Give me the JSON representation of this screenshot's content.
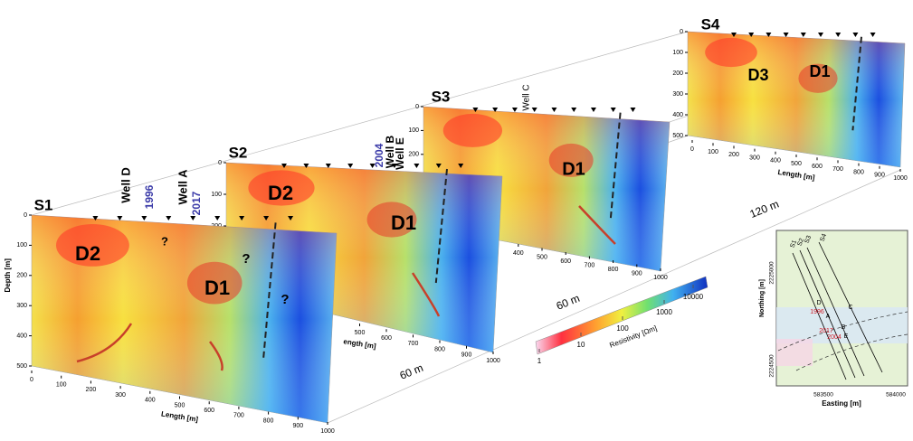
{
  "panels": [
    {
      "label": "S1",
      "depth_axis_label": "Depth [m]",
      "depth_ticks": [
        0,
        100,
        200,
        300,
        400,
        500
      ],
      "length_ticks": [
        0,
        100,
        200,
        300,
        400,
        500,
        600,
        700,
        800,
        900,
        1000
      ],
      "length_axis_label": "Length [m]",
      "annotations": [
        "D2",
        "D1",
        "Well D",
        "Well A",
        "1996",
        "2017",
        "?",
        "?",
        "?"
      ]
    },
    {
      "label": "S2",
      "depth_ticks": [
        0,
        100,
        200
      ],
      "length_ticks": [
        500,
        600,
        700,
        800,
        900,
        1000
      ],
      "length_axis_label": "ength [m]",
      "annotations": [
        "D2",
        "D1",
        "2004",
        "Well B",
        "Well E"
      ]
    },
    {
      "label": "S3",
      "depth_ticks": [
        0,
        100,
        200
      ],
      "length_ticks": [
        400,
        500,
        600,
        700,
        800,
        900,
        1000
      ],
      "annotations": [
        "Well C",
        "D1"
      ]
    },
    {
      "label": "S4",
      "depth_ticks": [
        0,
        100,
        200,
        300,
        400,
        500
      ],
      "length_ticks": [
        0,
        100,
        200,
        300,
        400,
        500,
        600,
        700,
        800,
        900,
        1000
      ],
      "length_axis_label": "Length [m]",
      "annotations": [
        "D3",
        "D1"
      ]
    }
  ],
  "spacings": [
    "60 m",
    "60 m",
    "120 m"
  ],
  "colorbar": {
    "label": "Resistivity [Ωm]",
    "ticks": [
      1,
      10,
      100,
      1000,
      10000
    ]
  },
  "map": {
    "x_label": "Easting [m]",
    "y_label": "Northing [m]",
    "x_ticks": [
      583500,
      584000
    ],
    "y_ticks": [
      2225000,
      2224500
    ],
    "line_labels": [
      "S1",
      "S2",
      "S3",
      "S4"
    ],
    "well_labels": [
      "D",
      "A",
      "C",
      "B",
      "E"
    ],
    "year_labels": [
      "1996",
      "2017",
      "2004"
    ]
  }
}
